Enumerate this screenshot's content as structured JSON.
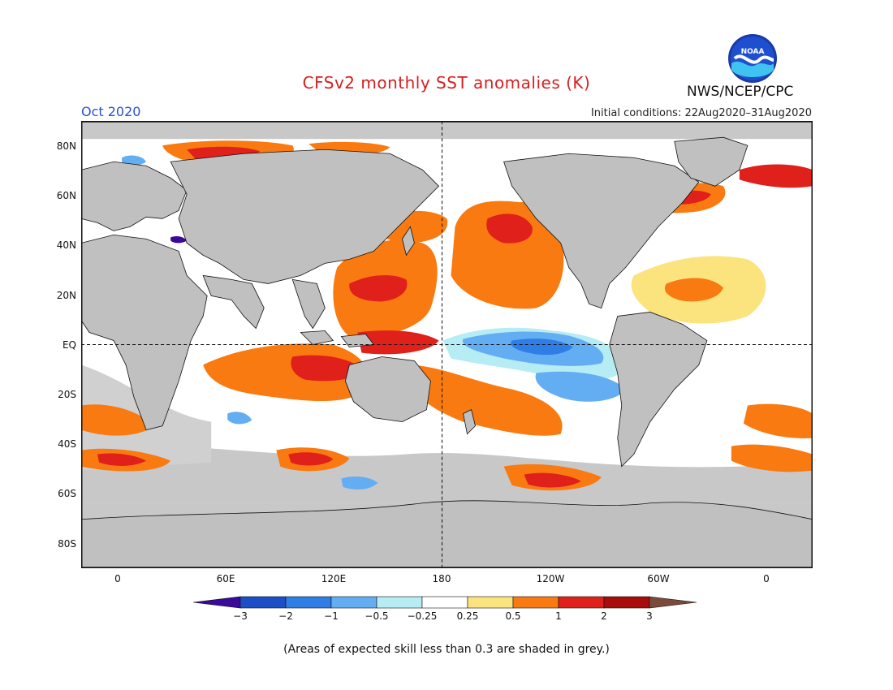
{
  "header": {
    "title": "CFSv2 monthly SST anomalies (K)",
    "month": "Oct 2020",
    "initial_conditions": "Initial conditions: 22Aug2020–31Aug2020",
    "organization": "NWS/NCEP/CPC",
    "logo_text": "NOAA"
  },
  "axes": {
    "lat_labels": [
      "80N",
      "60N",
      "40N",
      "20N",
      "EQ",
      "20S",
      "40S",
      "60S",
      "80S"
    ],
    "lon_labels": [
      "0",
      "60E",
      "120E",
      "180",
      "120W",
      "60W",
      "0"
    ]
  },
  "colorbar": {
    "tick_labels": [
      "−3",
      "−2",
      "−1",
      "−0.5",
      "−0.25",
      "0.25",
      "0.5",
      "1",
      "2",
      "3"
    ],
    "colors": [
      "#3a0a9a",
      "#1a4fc8",
      "#2f7ee6",
      "#63aef2",
      "#b6ecf4",
      "#ffffff",
      "#fbe47e",
      "#f97a10",
      "#e0201a",
      "#a80c0c",
      "#7a4a3a"
    ]
  },
  "legend_note": "(Areas of expected skill less than 0.3 are shaded in grey.)",
  "colors": {
    "land": "#c0c0c0",
    "skill_grey": "#c8c8c8",
    "title_red": "#d81e1e",
    "month_blue": "#2b4fd8"
  }
}
